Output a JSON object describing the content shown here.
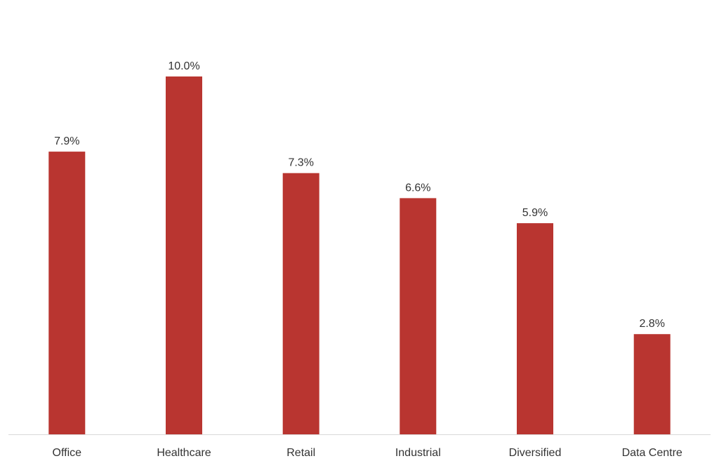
{
  "chart_data": {
    "type": "bar",
    "title": "",
    "xlabel": "",
    "ylabel": "",
    "categories": [
      "Office",
      "Healthcare",
      "Retail",
      "Industrial",
      "Diversified",
      "Data Centre"
    ],
    "values": [
      7.9,
      10.0,
      7.3,
      6.6,
      5.9,
      2.8
    ],
    "value_labels": [
      "7.9%",
      "10.0%",
      "7.3%",
      "6.6%",
      "5.9%",
      "2.8%"
    ],
    "ylim": [
      0,
      10
    ],
    "grid": false,
    "legend": "none",
    "bar_color": "#B93530",
    "axis_color": "#D9D9D9",
    "text_color": "#333333"
  }
}
